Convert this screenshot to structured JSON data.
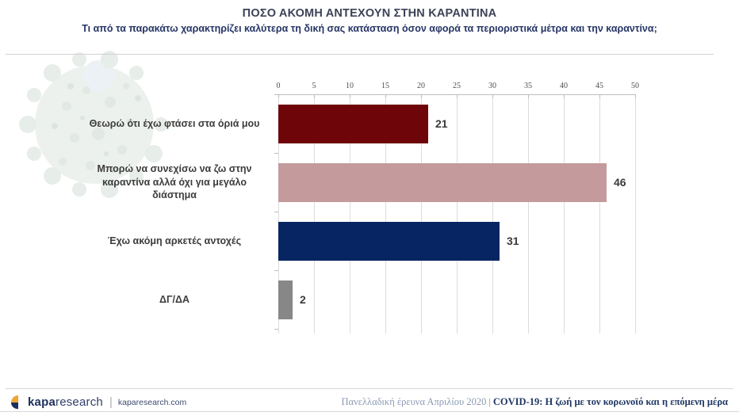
{
  "slide": {
    "title": "ΠΟΣΟ ΑΚΟΜΗ ΑΝΤΕΧΟΥΝ ΣΤΗΝ ΚΑΡΑΝΤΙΝΑ",
    "subtitle": "Τι από τα παρακάτω χαρακτηρίζει καλύτερα τη δική σας κατάσταση όσον αφορά τα περιοριστικά μέτρα και την καραντίνα;"
  },
  "chart_data": {
    "type": "bar",
    "orientation": "horizontal",
    "title": "ΠΟΣΟ ΑΚΟΜΗ ΑΝΤΕΧΟΥΝ ΣΤΗΝ ΚΑΡΑΝΤΙΝΑ",
    "categories": [
      "Θεωρώ ότι έχω φτάσει στα όριά μου",
      "Μπορώ να συνεχίσω να ζω στην\nκαραντίνα αλλά όχι για μεγάλο\nδιάστημα",
      "Έχω ακόμη αρκετές αντοχές",
      "ΔΓ/ΔΑ"
    ],
    "values": [
      21,
      46,
      31,
      2
    ],
    "bar_colors": [
      "#6e0508",
      "#c49a9d",
      "#062562",
      "#878787"
    ],
    "value_label_color": "#3b3b3b",
    "axis": {
      "min": 0,
      "max": 50,
      "step": 5,
      "ticks": [
        0,
        5,
        10,
        15,
        20,
        25,
        30,
        35,
        40,
        45,
        50
      ],
      "position": "top"
    },
    "grid": true,
    "legend": false,
    "data_labels": true
  },
  "watermark": {
    "icon": "coronavirus-icon"
  },
  "footer": {
    "brand_bold": "kapa",
    "brand_regular": "research",
    "separator": "|",
    "website": "kaparesearch.com",
    "survey_info": "Πανελλαδική έρευνα Απριλίου 2020",
    "info_separator": "|",
    "report_title": "COVID-19: Η ζωή με τον κορωνοϊό και η επόμενη μέρα"
  },
  "colors": {
    "title_text": "#3d4257",
    "subtitle_text": "#263566",
    "bar_dark_red": "#6e0508",
    "bar_dusty_pink": "#c49a9d",
    "bar_navy": "#062562",
    "bar_gray": "#878787",
    "gridline": "#dcdcdc",
    "logo_gold": "#efa634",
    "logo_navy": "#1f2f5c",
    "footer_navy": "#203864",
    "footer_muted_blue": "#8b99b3"
  }
}
